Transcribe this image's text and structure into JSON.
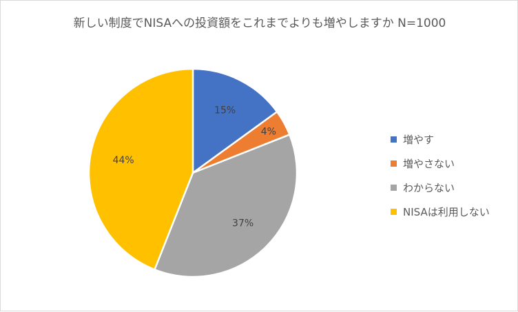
{
  "chart_data": {
    "type": "pie",
    "title": "新しい制度でNISAへの投資額をこれまでよりも増やしますか N=1000",
    "categories": [
      "増やす",
      "増やさない",
      "わからない",
      "NISAは利用しない"
    ],
    "values": [
      15,
      4,
      37,
      44
    ],
    "data_labels": [
      "15%",
      "4%",
      "37%",
      "44%"
    ],
    "colors": [
      "#4472c4",
      "#ed7d31",
      "#a5a5a5",
      "#ffc000"
    ],
    "legend_position": "right"
  }
}
